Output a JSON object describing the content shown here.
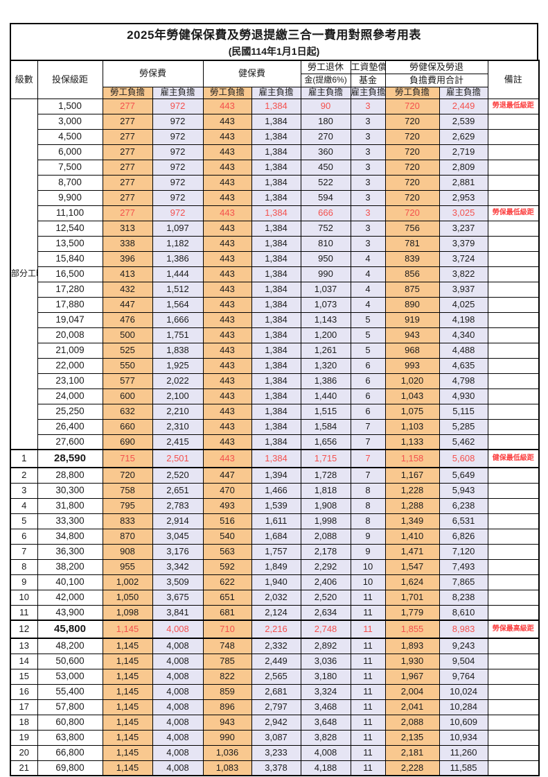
{
  "title": "2025年勞健保保費及勞退提繳三合一費用對照參考用表",
  "subtitle": "(民國114年1月1日起)",
  "part_time_label": "部分工時",
  "header": {
    "level": "級數",
    "bracket": "投保級距",
    "labor_insurance": "勞保費",
    "health_insurance": "健保費",
    "pension_line1": "勞工退休",
    "pension_line2": "金(提繳6%)",
    "wage_fund_line1": "工資墊償",
    "wage_fund_line2": "基金",
    "total_line1": "勞健保及勞退",
    "total_line2": "負擔費用合計",
    "remark": "備註",
    "employee": "勞工負擔",
    "employer": "雇主負擔"
  },
  "colors": {
    "employee_column_bg": "#F9C88F",
    "employer_column_bg": "#E6E5F4",
    "highlight_value_text": "#F4504D",
    "remark_text": "#FB4040"
  },
  "rows": [
    {
      "level": "",
      "bracket": "1,500",
      "values": [
        "277",
        "972",
        "443",
        "1,384",
        "90",
        "3",
        "720",
        "2,449"
      ],
      "remark": "勞退最低級距",
      "highlight": true
    },
    {
      "level": "",
      "bracket": "3,000",
      "values": [
        "277",
        "972",
        "443",
        "1,384",
        "180",
        "3",
        "720",
        "2,539"
      ],
      "remark": ""
    },
    {
      "level": "",
      "bracket": "4,500",
      "values": [
        "277",
        "972",
        "443",
        "1,384",
        "270",
        "3",
        "720",
        "2,629"
      ],
      "remark": ""
    },
    {
      "level": "",
      "bracket": "6,000",
      "values": [
        "277",
        "972",
        "443",
        "1,384",
        "360",
        "3",
        "720",
        "2,719"
      ],
      "remark": ""
    },
    {
      "level": "",
      "bracket": "7,500",
      "values": [
        "277",
        "972",
        "443",
        "1,384",
        "450",
        "3",
        "720",
        "2,809"
      ],
      "remark": ""
    },
    {
      "level": "",
      "bracket": "8,700",
      "values": [
        "277",
        "972",
        "443",
        "1,384",
        "522",
        "3",
        "720",
        "2,881"
      ],
      "remark": ""
    },
    {
      "level": "",
      "bracket": "9,900",
      "values": [
        "277",
        "972",
        "443",
        "1,384",
        "594",
        "3",
        "720",
        "2,953"
      ],
      "remark": ""
    },
    {
      "level": "",
      "bracket": "11,100",
      "values": [
        "277",
        "972",
        "443",
        "1,384",
        "666",
        "3",
        "720",
        "3,025"
      ],
      "remark": "勞保最低級距",
      "highlight": true
    },
    {
      "level": "",
      "bracket": "12,540",
      "values": [
        "313",
        "1,097",
        "443",
        "1,384",
        "752",
        "3",
        "756",
        "3,237"
      ],
      "remark": ""
    },
    {
      "level": "",
      "bracket": "13,500",
      "values": [
        "338",
        "1,182",
        "443",
        "1,384",
        "810",
        "3",
        "781",
        "3,379"
      ],
      "remark": ""
    },
    {
      "level": "",
      "bracket": "15,840",
      "values": [
        "396",
        "1,386",
        "443",
        "1,384",
        "950",
        "4",
        "839",
        "3,724"
      ],
      "remark": ""
    },
    {
      "level": "",
      "bracket": "16,500",
      "values": [
        "413",
        "1,444",
        "443",
        "1,384",
        "990",
        "4",
        "856",
        "3,822"
      ],
      "remark": ""
    },
    {
      "level": "",
      "bracket": "17,280",
      "values": [
        "432",
        "1,512",
        "443",
        "1,384",
        "1,037",
        "4",
        "875",
        "3,937"
      ],
      "remark": ""
    },
    {
      "level": "",
      "bracket": "17,880",
      "values": [
        "447",
        "1,564",
        "443",
        "1,384",
        "1,073",
        "4",
        "890",
        "4,025"
      ],
      "remark": ""
    },
    {
      "level": "",
      "bracket": "19,047",
      "values": [
        "476",
        "1,666",
        "443",
        "1,384",
        "1,143",
        "5",
        "919",
        "4,198"
      ],
      "remark": ""
    },
    {
      "level": "",
      "bracket": "20,008",
      "values": [
        "500",
        "1,751",
        "443",
        "1,384",
        "1,200",
        "5",
        "943",
        "4,340"
      ],
      "remark": ""
    },
    {
      "level": "",
      "bracket": "21,009",
      "values": [
        "525",
        "1,838",
        "443",
        "1,384",
        "1,261",
        "5",
        "968",
        "4,488"
      ],
      "remark": ""
    },
    {
      "level": "",
      "bracket": "22,000",
      "values": [
        "550",
        "1,925",
        "443",
        "1,384",
        "1,320",
        "6",
        "993",
        "4,635"
      ],
      "remark": ""
    },
    {
      "level": "",
      "bracket": "23,100",
      "values": [
        "577",
        "2,022",
        "443",
        "1,384",
        "1,386",
        "6",
        "1,020",
        "4,798"
      ],
      "remark": ""
    },
    {
      "level": "",
      "bracket": "24,000",
      "values": [
        "600",
        "2,100",
        "443",
        "1,384",
        "1,440",
        "6",
        "1,043",
        "4,930"
      ],
      "remark": ""
    },
    {
      "level": "",
      "bracket": "25,250",
      "values": [
        "632",
        "2,210",
        "443",
        "1,384",
        "1,515",
        "6",
        "1,075",
        "5,115"
      ],
      "remark": ""
    },
    {
      "level": "",
      "bracket": "26,400",
      "values": [
        "660",
        "2,310",
        "443",
        "1,384",
        "1,584",
        "7",
        "1,103",
        "5,285"
      ],
      "remark": ""
    },
    {
      "level": "",
      "bracket": "27,600",
      "values": [
        "690",
        "2,415",
        "443",
        "1,384",
        "1,656",
        "7",
        "1,133",
        "5,462"
      ],
      "remark": ""
    },
    {
      "level": "1",
      "bracket": "28,590",
      "values": [
        "715",
        "2,501",
        "443",
        "1,384",
        "1,715",
        "7",
        "1,158",
        "5,608"
      ],
      "remark": "健保最低級距",
      "highlight": true,
      "emphasis": true
    },
    {
      "level": "2",
      "bracket": "28,800",
      "values": [
        "720",
        "2,520",
        "447",
        "1,394",
        "1,728",
        "7",
        "1,167",
        "5,649"
      ],
      "remark": ""
    },
    {
      "level": "3",
      "bracket": "30,300",
      "values": [
        "758",
        "2,651",
        "470",
        "1,466",
        "1,818",
        "8",
        "1,228",
        "5,943"
      ],
      "remark": ""
    },
    {
      "level": "4",
      "bracket": "31,800",
      "values": [
        "795",
        "2,783",
        "493",
        "1,539",
        "1,908",
        "8",
        "1,288",
        "6,238"
      ],
      "remark": ""
    },
    {
      "level": "5",
      "bracket": "33,300",
      "values": [
        "833",
        "2,914",
        "516",
        "1,611",
        "1,998",
        "8",
        "1,349",
        "6,531"
      ],
      "remark": ""
    },
    {
      "level": "6",
      "bracket": "34,800",
      "values": [
        "870",
        "3,045",
        "540",
        "1,684",
        "2,088",
        "9",
        "1,410",
        "6,826"
      ],
      "remark": ""
    },
    {
      "level": "7",
      "bracket": "36,300",
      "values": [
        "908",
        "3,176",
        "563",
        "1,757",
        "2,178",
        "9",
        "1,471",
        "7,120"
      ],
      "remark": ""
    },
    {
      "level": "8",
      "bracket": "38,200",
      "values": [
        "955",
        "3,342",
        "592",
        "1,849",
        "2,292",
        "10",
        "1,547",
        "7,493"
      ],
      "remark": ""
    },
    {
      "level": "9",
      "bracket": "40,100",
      "values": [
        "1,002",
        "3,509",
        "622",
        "1,940",
        "2,406",
        "10",
        "1,624",
        "7,865"
      ],
      "remark": ""
    },
    {
      "level": "10",
      "bracket": "42,000",
      "values": [
        "1,050",
        "3,675",
        "651",
        "2,032",
        "2,520",
        "11",
        "1,701",
        "8,238"
      ],
      "remark": ""
    },
    {
      "level": "11",
      "bracket": "43,900",
      "values": [
        "1,098",
        "3,841",
        "681",
        "2,124",
        "2,634",
        "11",
        "1,779",
        "8,610"
      ],
      "remark": ""
    },
    {
      "level": "12",
      "bracket": "45,800",
      "values": [
        "1,145",
        "4,008",
        "710",
        "2,216",
        "2,748",
        "11",
        "1,855",
        "8,983"
      ],
      "remark": "勞保最高級距",
      "highlight": true,
      "emphasis": true
    },
    {
      "level": "13",
      "bracket": "48,200",
      "values": [
        "1,145",
        "4,008",
        "748",
        "2,332",
        "2,892",
        "11",
        "1,893",
        "9,243"
      ],
      "remark": ""
    },
    {
      "level": "14",
      "bracket": "50,600",
      "values": [
        "1,145",
        "4,008",
        "785",
        "2,449",
        "3,036",
        "11",
        "1,930",
        "9,504"
      ],
      "remark": ""
    },
    {
      "level": "15",
      "bracket": "53,000",
      "values": [
        "1,145",
        "4,008",
        "822",
        "2,565",
        "3,180",
        "11",
        "1,967",
        "9,764"
      ],
      "remark": ""
    },
    {
      "level": "16",
      "bracket": "55,400",
      "values": [
        "1,145",
        "4,008",
        "859",
        "2,681",
        "3,324",
        "11",
        "2,004",
        "10,024"
      ],
      "remark": ""
    },
    {
      "level": "17",
      "bracket": "57,800",
      "values": [
        "1,145",
        "4,008",
        "896",
        "2,797",
        "3,468",
        "11",
        "2,041",
        "10,284"
      ],
      "remark": ""
    },
    {
      "level": "18",
      "bracket": "60,800",
      "values": [
        "1,145",
        "4,008",
        "943",
        "2,942",
        "3,648",
        "11",
        "2,088",
        "10,609"
      ],
      "remark": ""
    },
    {
      "level": "19",
      "bracket": "63,800",
      "values": [
        "1,145",
        "4,008",
        "990",
        "3,087",
        "3,828",
        "11",
        "2,135",
        "10,934"
      ],
      "remark": ""
    },
    {
      "level": "20",
      "bracket": "66,800",
      "values": [
        "1,145",
        "4,008",
        "1,036",
        "3,233",
        "4,008",
        "11",
        "2,181",
        "11,260"
      ],
      "remark": ""
    },
    {
      "level": "21",
      "bracket": "69,800",
      "values": [
        "1,145",
        "4,008",
        "1,083",
        "3,378",
        "4,188",
        "11",
        "2,228",
        "11,585"
      ],
      "remark": ""
    }
  ]
}
